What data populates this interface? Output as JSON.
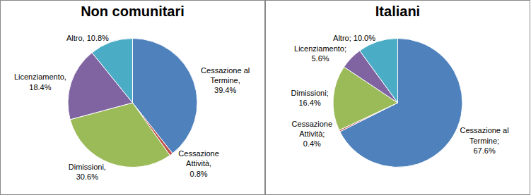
{
  "chart_data": [
    {
      "type": "pie",
      "title": "Non comunitari",
      "categories": [
        "Cessazione al Termine",
        "Cessazione Attività",
        "Dimissioni",
        "Licenziamento",
        "Altro"
      ],
      "values": [
        39.4,
        0.8,
        30.6,
        18.4,
        10.8
      ],
      "value_labels": [
        "Cessazione al Termine, 39.4%",
        "Cessazione Attività, 0.8%",
        "Dimissioni, 30.6%",
        "Licenziamento, 18.4%",
        "Altro, 10.8%"
      ],
      "colors": [
        "#4f81bd",
        "#c0504d",
        "#9bbb59",
        "#8064a2",
        "#4bacc6"
      ],
      "data_labels": true
    },
    {
      "type": "pie",
      "title": "Italiani",
      "categories": [
        "Cessazione al Termine",
        "Cessazione Attività",
        "Dimissioni",
        "Licenziamento",
        "Altro"
      ],
      "values": [
        67.6,
        0.4,
        16.4,
        5.6,
        10.0
      ],
      "value_labels": [
        "Cessazione al Termine; 67.6%",
        "Cessazione Attività; 0.4%",
        "Dimissioni; 16.4%",
        "Licenziamento; 5.6%",
        "Altro; 10.0%"
      ],
      "colors": [
        "#4f81bd",
        "#c0504d",
        "#9bbb59",
        "#8064a2",
        "#4bacc6"
      ],
      "data_labels": true
    }
  ]
}
